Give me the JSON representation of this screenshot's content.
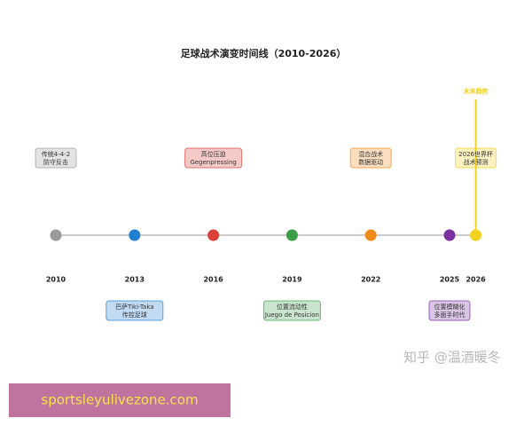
{
  "title": "足球战术演变时间线（2010-2026）",
  "events": [
    {
      "year": 2010,
      "lines": [
        "传统4-4-2",
        "防守反击"
      ],
      "color": "#9a9a9a"
    },
    {
      "year": 2013,
      "lines": [
        "巴萨Tiki-Taka",
        "传控足球"
      ],
      "color": "#1f7fd0"
    },
    {
      "year": 2016,
      "lines": [
        "高位压迫",
        "Gegenpressing"
      ],
      "color": "#d9403a"
    },
    {
      "year": 2019,
      "lines": [
        "位置流动性",
        "Juego de Posicion"
      ],
      "color": "#3a9e48"
    },
    {
      "year": 2022,
      "lines": [
        "混合战术",
        "数据驱动"
      ],
      "color": "#f08a1a"
    },
    {
      "year": 2025,
      "lines": [
        "位置模糊化",
        "多面手时代"
      ],
      "color": "#7b2fa0"
    },
    {
      "year": 2026,
      "lines": [
        "2026世界杯",
        "战术预测"
      ],
      "color": "#f2d21c"
    }
  ],
  "future_label": "未来趋势",
  "watermark": "知乎 @温酒暖冬",
  "banner": "sportsleyulivezone.com"
}
